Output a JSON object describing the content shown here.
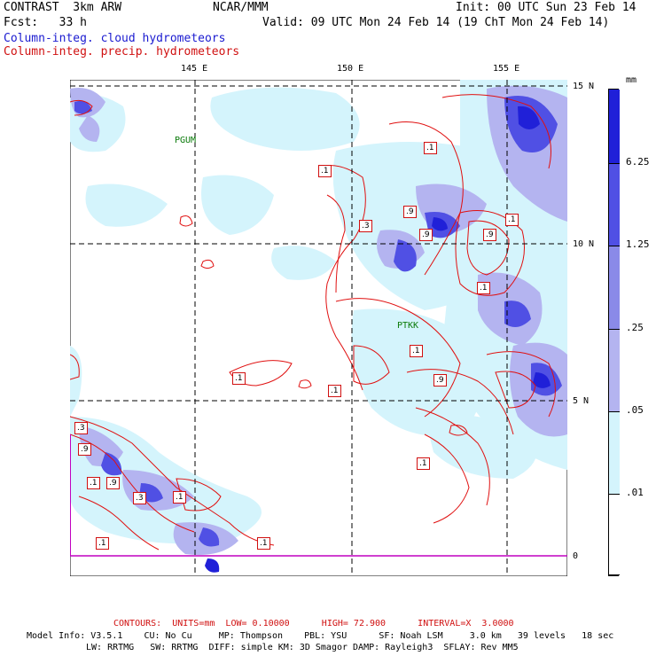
{
  "header": {
    "left_line1": "CONTRAST  3km ARW",
    "center_line1": "NCAR/MMM",
    "right_line1": "Init: 00 UTC Sun 23 Feb 14",
    "left_line2": "Fcst:   33 h",
    "right_line2": "Valid: 09 UTC Mon 24 Feb 14 (19 ChT Mon 24 Feb 14)",
    "legend_cloud": "Column-integ. cloud hydrometeors",
    "legend_precip": "Column-integ. precip. hydrometeors"
  },
  "map": {
    "lon_labels": [
      "145 E",
      "150 E",
      "155 E"
    ],
    "lat_labels": [
      "15 N",
      "10 N",
      "5 N",
      "0"
    ],
    "stations": [
      "PGUM",
      "PTKK"
    ],
    "contour_labels": [
      ".1",
      ".1",
      ".3",
      ".9",
      ".9",
      ".9",
      ".1",
      ".1",
      ".1",
      ".1",
      ".9",
      ".3",
      ".9",
      ".1",
      ".9",
      ".3",
      ".1",
      ".1",
      ".1",
      ".1",
      ".1"
    ]
  },
  "colorbar": {
    "unit": "mm",
    "levels": [
      "6.25",
      "1.25",
      ".25",
      ".05",
      ".01"
    ],
    "colors": [
      "#2020d8",
      "#5050e4",
      "#8a8ae8",
      "#b4b4f0",
      "#d4f4fc",
      "#ffffff"
    ]
  },
  "footer": {
    "contours": "CONTOURS:  UNITS=mm  LOW= 0.10000      HIGH= 72.900      INTERVAL=X  3.0000",
    "model_line1": "Model Info: V3.5.1    CU: No Cu     MP: Thompson    PBL: YSU      SF: Noah LSM     3.0 km   39 levels   18 sec",
    "model_line2": "LW: RRTMG   SW: RRTMG  DIFF: simple KM: 3D Smagor DAMP: Rayleigh3  SFLAY: Rev MM5"
  }
}
